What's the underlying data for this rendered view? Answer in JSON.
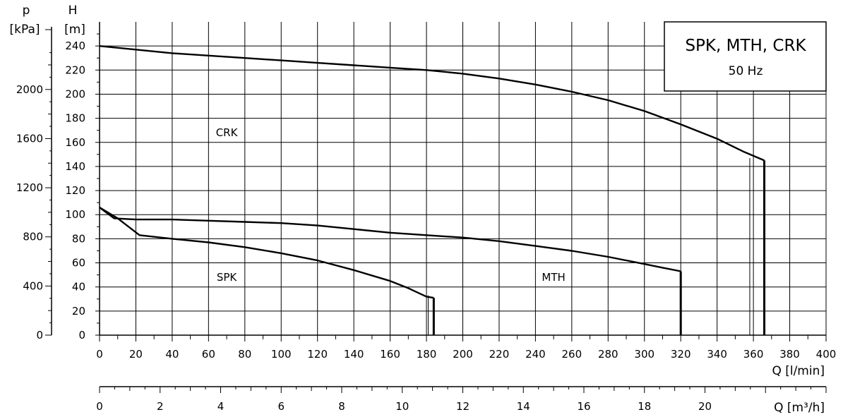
{
  "chart_data": {
    "type": "line",
    "title_box": {
      "title": "SPK, MTH, CRK",
      "frequency": "50 Hz"
    },
    "x_axis": {
      "label": "Q [l/min]",
      "range": [
        0,
        400
      ],
      "ticks": [
        "0",
        "20",
        "40",
        "60",
        "80",
        "100",
        "120",
        "140",
        "160",
        "180",
        "200",
        "220",
        "240",
        "260",
        "280",
        "300",
        "320",
        "340",
        "360",
        "380",
        "400"
      ]
    },
    "x2_axis": {
      "label": "Q [m³/h]",
      "range": [
        0,
        24
      ],
      "ticks": [
        "0",
        "2",
        "4",
        "6",
        "8",
        "10",
        "12",
        "14",
        "16",
        "18",
        "20"
      ]
    },
    "y_axis": {
      "label_top": "H",
      "label_unit": "[m]",
      "range": [
        0,
        260
      ],
      "ticks": [
        "0",
        "20",
        "40",
        "60",
        "80",
        "100",
        "120",
        "140",
        "160",
        "180",
        "200",
        "220",
        "240"
      ]
    },
    "y2_axis": {
      "label_top": "p",
      "label_unit": "[kPa]",
      "ticks": [
        "0",
        "400",
        "800",
        "1200",
        "1600",
        "2000"
      ]
    },
    "grid": true,
    "region_labels": [
      {
        "text": "CRK",
        "x": 70,
        "y": 168
      },
      {
        "text": "SPK",
        "x": 70,
        "y": 48
      },
      {
        "text": "MTH",
        "x": 250,
        "y": 48
      }
    ],
    "series": [
      {
        "name": "CRK",
        "points": [
          [
            0,
            240
          ],
          [
            20,
            237
          ],
          [
            40,
            234
          ],
          [
            60,
            232
          ],
          [
            80,
            230
          ],
          [
            100,
            228
          ],
          [
            120,
            226
          ],
          [
            140,
            224
          ],
          [
            160,
            222
          ],
          [
            180,
            220
          ],
          [
            200,
            217
          ],
          [
            220,
            213
          ],
          [
            240,
            208
          ],
          [
            260,
            202
          ],
          [
            280,
            195
          ],
          [
            300,
            186
          ],
          [
            320,
            175
          ],
          [
            340,
            163
          ],
          [
            355,
            152
          ],
          [
            366,
            145
          ]
        ],
        "cutoff_x": 366,
        "cutoff_y": 145,
        "thin_drop_x": 358
      },
      {
        "name": "MTH",
        "points": [
          [
            0,
            106
          ],
          [
            8,
            97
          ],
          [
            20,
            96
          ],
          [
            40,
            96
          ],
          [
            60,
            95
          ],
          [
            80,
            94
          ],
          [
            100,
            93
          ],
          [
            120,
            91
          ],
          [
            140,
            88
          ],
          [
            160,
            85
          ],
          [
            180,
            83
          ],
          [
            200,
            81
          ],
          [
            220,
            78
          ],
          [
            240,
            74
          ],
          [
            260,
            70
          ],
          [
            280,
            65
          ],
          [
            300,
            59
          ],
          [
            310,
            56
          ],
          [
            320,
            53
          ]
        ],
        "cutoff_x": 320,
        "cutoff_y": 53,
        "thin_drop_x": 320
      },
      {
        "name": "SPK",
        "points": [
          [
            0,
            106
          ],
          [
            10,
            97
          ],
          [
            22,
            83
          ],
          [
            40,
            80
          ],
          [
            60,
            77
          ],
          [
            80,
            73
          ],
          [
            100,
            68
          ],
          [
            120,
            62
          ],
          [
            140,
            54
          ],
          [
            160,
            45
          ],
          [
            170,
            39
          ],
          [
            180,
            32
          ],
          [
            184,
            31
          ]
        ],
        "cutoff_x": 184,
        "cutoff_y": 31,
        "thin_drop_x": 181
      }
    ]
  }
}
